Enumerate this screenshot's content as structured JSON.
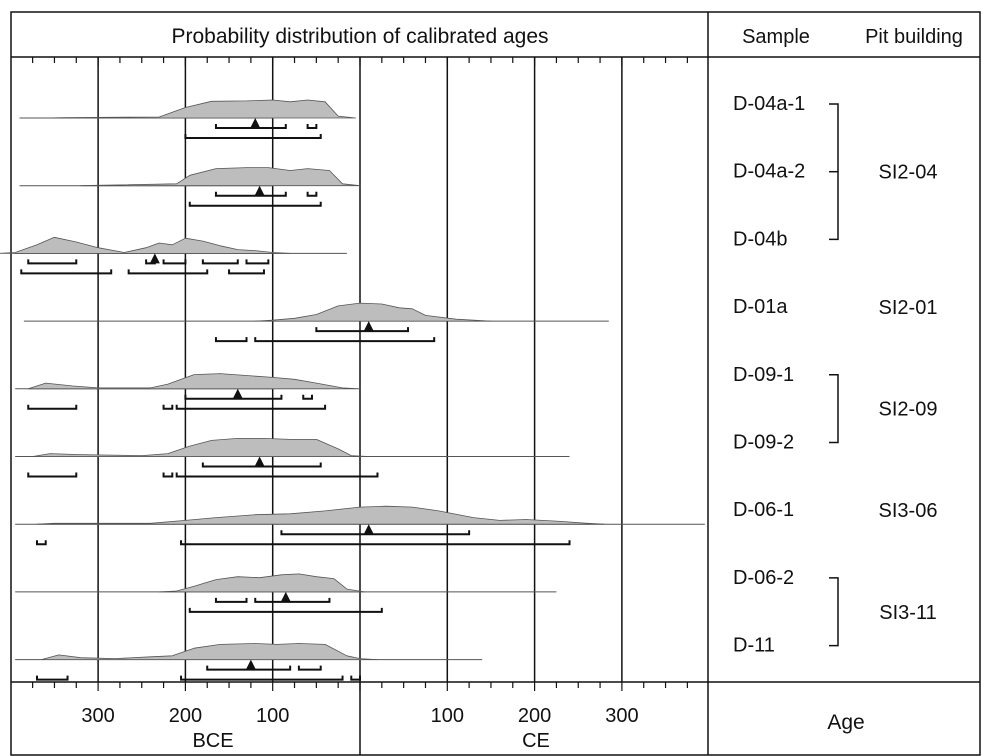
{
  "chart_data": {
    "type": "area",
    "title": "Probability distribution of calibrated ages",
    "xlabel": "Age",
    "x_unit_left": "BCE",
    "x_unit_right": "CE",
    "x_range": [
      -400,
      400
    ],
    "tick_labels": [
      {
        "value": -300,
        "label": "300"
      },
      {
        "value": -200,
        "label": "200"
      },
      {
        "value": -100,
        "label": "100"
      },
      {
        "value": 100,
        "label": "100"
      },
      {
        "value": 200,
        "label": "200"
      },
      {
        "value": 300,
        "label": "300"
      }
    ],
    "gridlines": [
      -300,
      -200,
      -100,
      0,
      100,
      200,
      300
    ],
    "column_headers": {
      "sample": "Sample",
      "pit_building": "Pit building"
    },
    "samples": [
      {
        "name": "D-04a-1",
        "median": -120,
        "line_range": [
          -390,
          -100
        ],
        "sigma1": [
          [
            -165,
            -85
          ],
          [
            -60,
            -50
          ]
        ],
        "sigma2": [
          [
            -200,
            -45
          ]
        ],
        "peaks": [
          [
            -340,
            0.02
          ],
          [
            -230,
            0.05
          ],
          [
            -200,
            0.55
          ],
          [
            -170,
            0.88
          ],
          [
            -130,
            0.9
          ],
          [
            -100,
            0.95
          ],
          [
            -80,
            0.85
          ],
          [
            -60,
            0.95
          ],
          [
            -40,
            0.85
          ],
          [
            -25,
            0.1
          ]
        ]
      },
      {
        "name": "D-04a-2",
        "median": -115,
        "line_range": [
          -390,
          -100
        ],
        "sigma1": [
          [
            -165,
            -85
          ],
          [
            -60,
            -50
          ]
        ],
        "sigma2": [
          [
            -195,
            -45
          ]
        ],
        "peaks": [
          [
            -300,
            0.02
          ],
          [
            -210,
            0.1
          ],
          [
            -195,
            0.55
          ],
          [
            -165,
            0.9
          ],
          [
            -130,
            0.95
          ],
          [
            -105,
            0.95
          ],
          [
            -80,
            0.8
          ],
          [
            -60,
            0.9
          ],
          [
            -35,
            0.8
          ],
          [
            -20,
            0.1
          ]
        ]
      },
      {
        "name": "D-04b",
        "median": -235,
        "line_range": [
          -395,
          -15
        ],
        "sigma1": [
          [
            -380,
            -325
          ],
          [
            -245,
            -235
          ],
          [
            -225,
            -200
          ],
          [
            -180,
            -140
          ],
          [
            -130,
            -105
          ]
        ],
        "sigma2": [
          [
            -388,
            -285
          ],
          [
            -265,
            -175
          ],
          [
            -150,
            -110
          ]
        ],
        "peaks": [
          [
            -395,
            0.05
          ],
          [
            -370,
            0.45
          ],
          [
            -350,
            0.85
          ],
          [
            -325,
            0.6
          ],
          [
            -300,
            0.3
          ],
          [
            -270,
            0.05
          ],
          [
            -245,
            0.3
          ],
          [
            -230,
            0.55
          ],
          [
            -215,
            0.45
          ],
          [
            -200,
            0.8
          ],
          [
            -180,
            0.65
          ],
          [
            -160,
            0.4
          ],
          [
            -140,
            0.2
          ],
          [
            -120,
            0.15
          ],
          [
            -100,
            0.05
          ]
        ]
      },
      {
        "name": "D-01a",
        "median": 10,
        "line_range": [
          -385,
          285
        ],
        "sigma1": [
          [
            -50,
            55
          ]
        ],
        "sigma2": [
          [
            -165,
            -130
          ],
          [
            -120,
            85
          ]
        ],
        "peaks": [
          [
            -100,
            0.05
          ],
          [
            -75,
            0.15
          ],
          [
            -50,
            0.35
          ],
          [
            -25,
            0.8
          ],
          [
            0,
            0.95
          ],
          [
            25,
            0.9
          ],
          [
            45,
            0.7
          ],
          [
            60,
            0.65
          ],
          [
            75,
            0.3
          ],
          [
            110,
            0.1
          ],
          [
            130,
            0.05
          ]
        ]
      },
      {
        "name": "D-09-1",
        "median": -140,
        "line_range": [
          -395,
          -100
        ],
        "sigma1": [
          [
            -200,
            -90
          ],
          [
            -65,
            -55
          ]
        ],
        "sigma2": [
          [
            -380,
            -325
          ],
          [
            -225,
            -215
          ],
          [
            -210,
            -40
          ]
        ],
        "peaks": [
          [
            -360,
            0.3
          ],
          [
            -330,
            0.15
          ],
          [
            -300,
            0.05
          ],
          [
            -240,
            0.05
          ],
          [
            -220,
            0.25
          ],
          [
            -190,
            0.75
          ],
          [
            -160,
            0.8
          ],
          [
            -130,
            0.7
          ],
          [
            -100,
            0.6
          ],
          [
            -75,
            0.5
          ],
          [
            -50,
            0.3
          ],
          [
            -20,
            0.05
          ]
        ]
      },
      {
        "name": "D-09-2",
        "median": -115,
        "line_range": [
          -395,
          240
        ],
        "sigma1": [
          [
            -180,
            -45
          ]
        ],
        "sigma2": [
          [
            -380,
            -325
          ],
          [
            -225,
            -215
          ],
          [
            -210,
            20
          ]
        ],
        "peaks": [
          [
            -355,
            0.15
          ],
          [
            -320,
            0.1
          ],
          [
            -250,
            0.05
          ],
          [
            -220,
            0.15
          ],
          [
            -195,
            0.55
          ],
          [
            -170,
            0.85
          ],
          [
            -140,
            0.95
          ],
          [
            -110,
            0.95
          ],
          [
            -80,
            0.9
          ],
          [
            -50,
            0.9
          ],
          [
            -25,
            0.4
          ],
          [
            -10,
            0.05
          ]
        ]
      },
      {
        "name": "D-06-1",
        "median": 10,
        "line_range": [
          -395,
          395
        ],
        "sigma1": [
          [
            -90,
            125
          ]
        ],
        "sigma2": [
          [
            -370,
            -360
          ],
          [
            -205,
            240
          ]
        ],
        "peaks": [
          [
            -350,
            0.05
          ],
          [
            -240,
            0.05
          ],
          [
            -200,
            0.2
          ],
          [
            -165,
            0.35
          ],
          [
            -120,
            0.5
          ],
          [
            -80,
            0.55
          ],
          [
            -40,
            0.7
          ],
          [
            0,
            0.9
          ],
          [
            30,
            0.95
          ],
          [
            60,
            0.9
          ],
          [
            90,
            0.7
          ],
          [
            130,
            0.35
          ],
          [
            160,
            0.2
          ],
          [
            190,
            0.25
          ],
          [
            230,
            0.15
          ],
          [
            260,
            0.05
          ]
        ]
      },
      {
        "name": "D-06-2",
        "median": -85,
        "line_range": [
          -395,
          225
        ],
        "sigma1": [
          [
            -165,
            -130
          ],
          [
            -120,
            -35
          ]
        ],
        "sigma2": [
          [
            -195,
            25
          ]
        ],
        "peaks": [
          [
            -210,
            0.05
          ],
          [
            -190,
            0.3
          ],
          [
            -165,
            0.65
          ],
          [
            -140,
            0.8
          ],
          [
            -115,
            0.75
          ],
          [
            -90,
            0.9
          ],
          [
            -70,
            0.95
          ],
          [
            -50,
            0.8
          ],
          [
            -30,
            0.7
          ],
          [
            -15,
            0.15
          ]
        ]
      },
      {
        "name": "D-11",
        "median": -125,
        "line_range": [
          -395,
          140
        ],
        "sigma1": [
          [
            -175,
            -80
          ],
          [
            -70,
            -45
          ]
        ],
        "sigma2": [
          [
            -370,
            -335
          ],
          [
            -205,
            -20
          ],
          [
            -10,
            0
          ]
        ],
        "peaks": [
          [
            -345,
            0.25
          ],
          [
            -320,
            0.1
          ],
          [
            -280,
            0.05
          ],
          [
            -240,
            0.15
          ],
          [
            -215,
            0.2
          ],
          [
            -190,
            0.6
          ],
          [
            -160,
            0.8
          ],
          [
            -120,
            0.85
          ],
          [
            -95,
            0.8
          ],
          [
            -70,
            0.85
          ],
          [
            -40,
            0.8
          ],
          [
            -15,
            0.2
          ],
          [
            0,
            0.05
          ]
        ]
      }
    ],
    "groups": [
      {
        "label": "SI2-04",
        "first": 0,
        "last": 2
      },
      {
        "label": "SI2-01",
        "first": 3,
        "last": 3
      },
      {
        "label": "SI2-09",
        "first": 4,
        "last": 5
      },
      {
        "label": "SI3-06",
        "first": 6,
        "last": 6
      },
      {
        "label": "SI3-11",
        "first": 7,
        "last": 8
      }
    ],
    "grid": true,
    "legend": "none",
    "colors": {
      "fill": "#bdbdbd",
      "stroke": "#555555",
      "ink": "#111111"
    }
  }
}
